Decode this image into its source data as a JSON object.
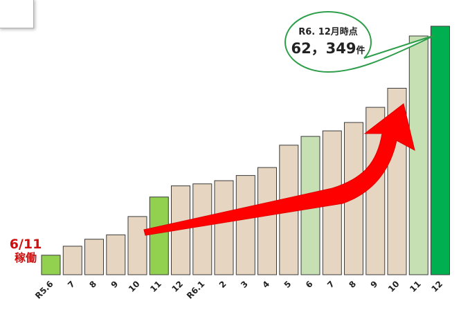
{
  "chart_data": {
    "type": "bar",
    "categories": [
      "R5.6",
      "7",
      "8",
      "9",
      "10",
      "11",
      "12",
      "R6.1",
      "2",
      "3",
      "4",
      "5",
      "6",
      "7",
      "8",
      "9",
      "10",
      "11",
      "12"
    ],
    "values": [
      4900,
      7150,
      8900,
      10000,
      14600,
      19500,
      22300,
      22800,
      23600,
      24900,
      26900,
      32500,
      34700,
      36100,
      38200,
      42000,
      46800,
      59900,
      62349
    ],
    "bar_colors": [
      "#92d050",
      "#e6d5c0",
      "#e6d5c0",
      "#e6d5c0",
      "#e6d5c0",
      "#92d050",
      "#e6d5c0",
      "#e6d5c0",
      "#e6d5c0",
      "#e6d5c0",
      "#e6d5c0",
      "#e6d5c0",
      "#c6e0b4",
      "#e6d5c0",
      "#e6d5c0",
      "#e6d5c0",
      "#e6d5c0",
      "#c6e0b4",
      "#00b050"
    ],
    "ylim": [
      0,
      63200
    ],
    "xlabel": "",
    "ylabel": "",
    "annotations": {
      "launch": {
        "line1": "6/11",
        "line2": "稼働",
        "color": "#cc1010"
      },
      "callout": {
        "line1": "R6. 12月時点",
        "value": "62，349",
        "unit": "件",
        "fill": "#ffffff",
        "stroke": "#2e9e4a"
      }
    },
    "trend_arrow_color": "#ff0000"
  }
}
